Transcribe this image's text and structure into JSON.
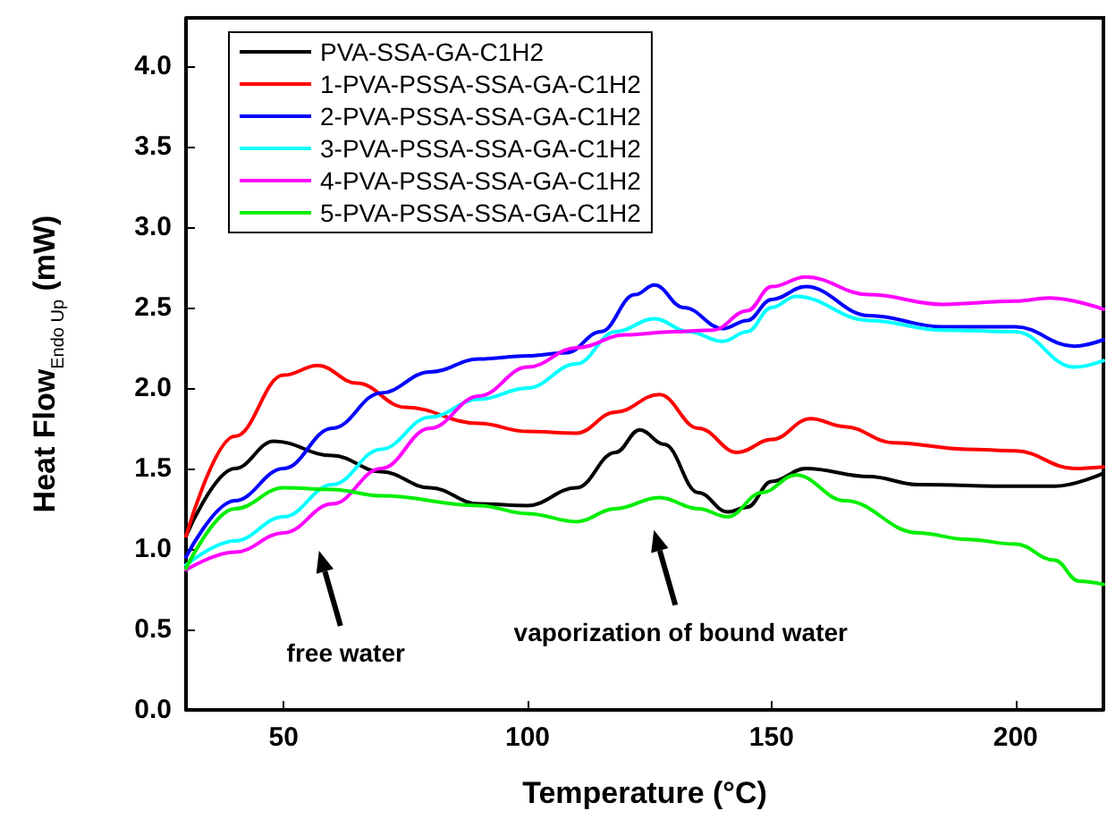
{
  "chart_data": {
    "type": "line",
    "xlabel": "Temperature (°C)",
    "ylabel": "Heat Flow$_{Endo Up}$ (mW)",
    "xlim": [
      30,
      218
    ],
    "xticks": [
      50,
      100,
      150,
      200
    ],
    "ylim": [
      0,
      4.3
    ],
    "yticks": [
      {
        "value": 0,
        "label": "0.0"
      },
      {
        "value": 0.5,
        "label": "0.5"
      },
      {
        "value": 1,
        "label": "1.0"
      },
      {
        "value": 1.5,
        "label": "1.5"
      },
      {
        "value": 2,
        "label": "2.0"
      },
      {
        "value": 2.5,
        "label": "2.5"
      },
      {
        "value": 3,
        "label": "3.0"
      },
      {
        "value": 3.5,
        "label": "3.5"
      },
      {
        "value": 4,
        "label": "4.0"
      }
    ],
    "grid": false,
    "legend": "top left",
    "marker": "none",
    "line_style": "solid",
    "annotations": [
      "free water",
      "vaporization of bound water"
    ],
    "series": [
      {
        "name": "PVA-SSA-GA-C1H2",
        "color": "#000000",
        "x": [
          30,
          40,
          48,
          60,
          70,
          80,
          90,
          100,
          110,
          118,
          123,
          128,
          135,
          141,
          145,
          150,
          157,
          170,
          180,
          200,
          208,
          218
        ],
        "values": [
          1.08,
          1.5,
          1.67,
          1.58,
          1.48,
          1.38,
          1.28,
          1.27,
          1.38,
          1.6,
          1.74,
          1.65,
          1.35,
          1.23,
          1.26,
          1.42,
          1.5,
          1.45,
          1.4,
          1.39,
          1.39,
          1.47
        ]
      },
      {
        "name": "1-PVA-PSSA-SSA-GA-C1H2",
        "color": "#ff0000",
        "x": [
          30,
          40,
          50,
          57,
          65,
          75,
          90,
          100,
          110,
          118,
          127,
          135,
          143,
          150,
          158,
          165,
          175,
          190,
          200,
          212,
          218
        ],
        "values": [
          1.08,
          1.7,
          2.08,
          2.14,
          2.03,
          1.88,
          1.78,
          1.73,
          1.72,
          1.85,
          1.96,
          1.75,
          1.6,
          1.68,
          1.81,
          1.76,
          1.66,
          1.62,
          1.61,
          1.5,
          1.51
        ]
      },
      {
        "name": "2-PVA-PSSA-SSA-GA-C1H2",
        "color": "#0000ff",
        "x": [
          30,
          40,
          50,
          60,
          70,
          80,
          90,
          100,
          108,
          115,
          122,
          126,
          132,
          140,
          145,
          150,
          157,
          170,
          185,
          200,
          212,
          218
        ],
        "values": [
          0.95,
          1.3,
          1.5,
          1.75,
          1.97,
          2.1,
          2.18,
          2.2,
          2.22,
          2.35,
          2.58,
          2.64,
          2.5,
          2.37,
          2.42,
          2.55,
          2.63,
          2.45,
          2.38,
          2.38,
          2.26,
          2.3
        ]
      },
      {
        "name": "3-PVA-PSSA-SSA-GA-C1H2",
        "color": "#00ffff",
        "x": [
          30,
          40,
          50,
          60,
          70,
          80,
          90,
          100,
          110,
          118,
          126,
          133,
          140,
          145,
          150,
          155,
          170,
          185,
          200,
          212,
          218
        ],
        "values": [
          0.9,
          1.05,
          1.2,
          1.4,
          1.62,
          1.82,
          1.93,
          2.0,
          2.15,
          2.35,
          2.43,
          2.35,
          2.29,
          2.35,
          2.5,
          2.57,
          2.42,
          2.36,
          2.35,
          2.13,
          2.17
        ]
      },
      {
        "name": "4-PVA-PSSA-SSA-GA-C1H2",
        "color": "#ff00ff",
        "x": [
          30,
          40,
          50,
          60,
          70,
          80,
          90,
          100,
          110,
          120,
          130,
          138,
          145,
          150,
          157,
          170,
          185,
          200,
          207,
          218
        ],
        "values": [
          0.87,
          0.98,
          1.1,
          1.28,
          1.5,
          1.75,
          1.95,
          2.13,
          2.25,
          2.33,
          2.35,
          2.36,
          2.48,
          2.63,
          2.69,
          2.58,
          2.52,
          2.54,
          2.56,
          2.49
        ]
      },
      {
        "name": "5-PVA-PSSA-SSA-GA-C1H2",
        "color": "#00ee00",
        "x": [
          30,
          40,
          50,
          60,
          70,
          90,
          100,
          110,
          118,
          127,
          135,
          141,
          148,
          155,
          165,
          180,
          190,
          200,
          208,
          213,
          218
        ],
        "values": [
          0.88,
          1.25,
          1.38,
          1.37,
          1.33,
          1.27,
          1.22,
          1.17,
          1.25,
          1.32,
          1.25,
          1.2,
          1.35,
          1.46,
          1.3,
          1.1,
          1.06,
          1.03,
          0.93,
          0.8,
          0.78
        ]
      }
    ]
  }
}
